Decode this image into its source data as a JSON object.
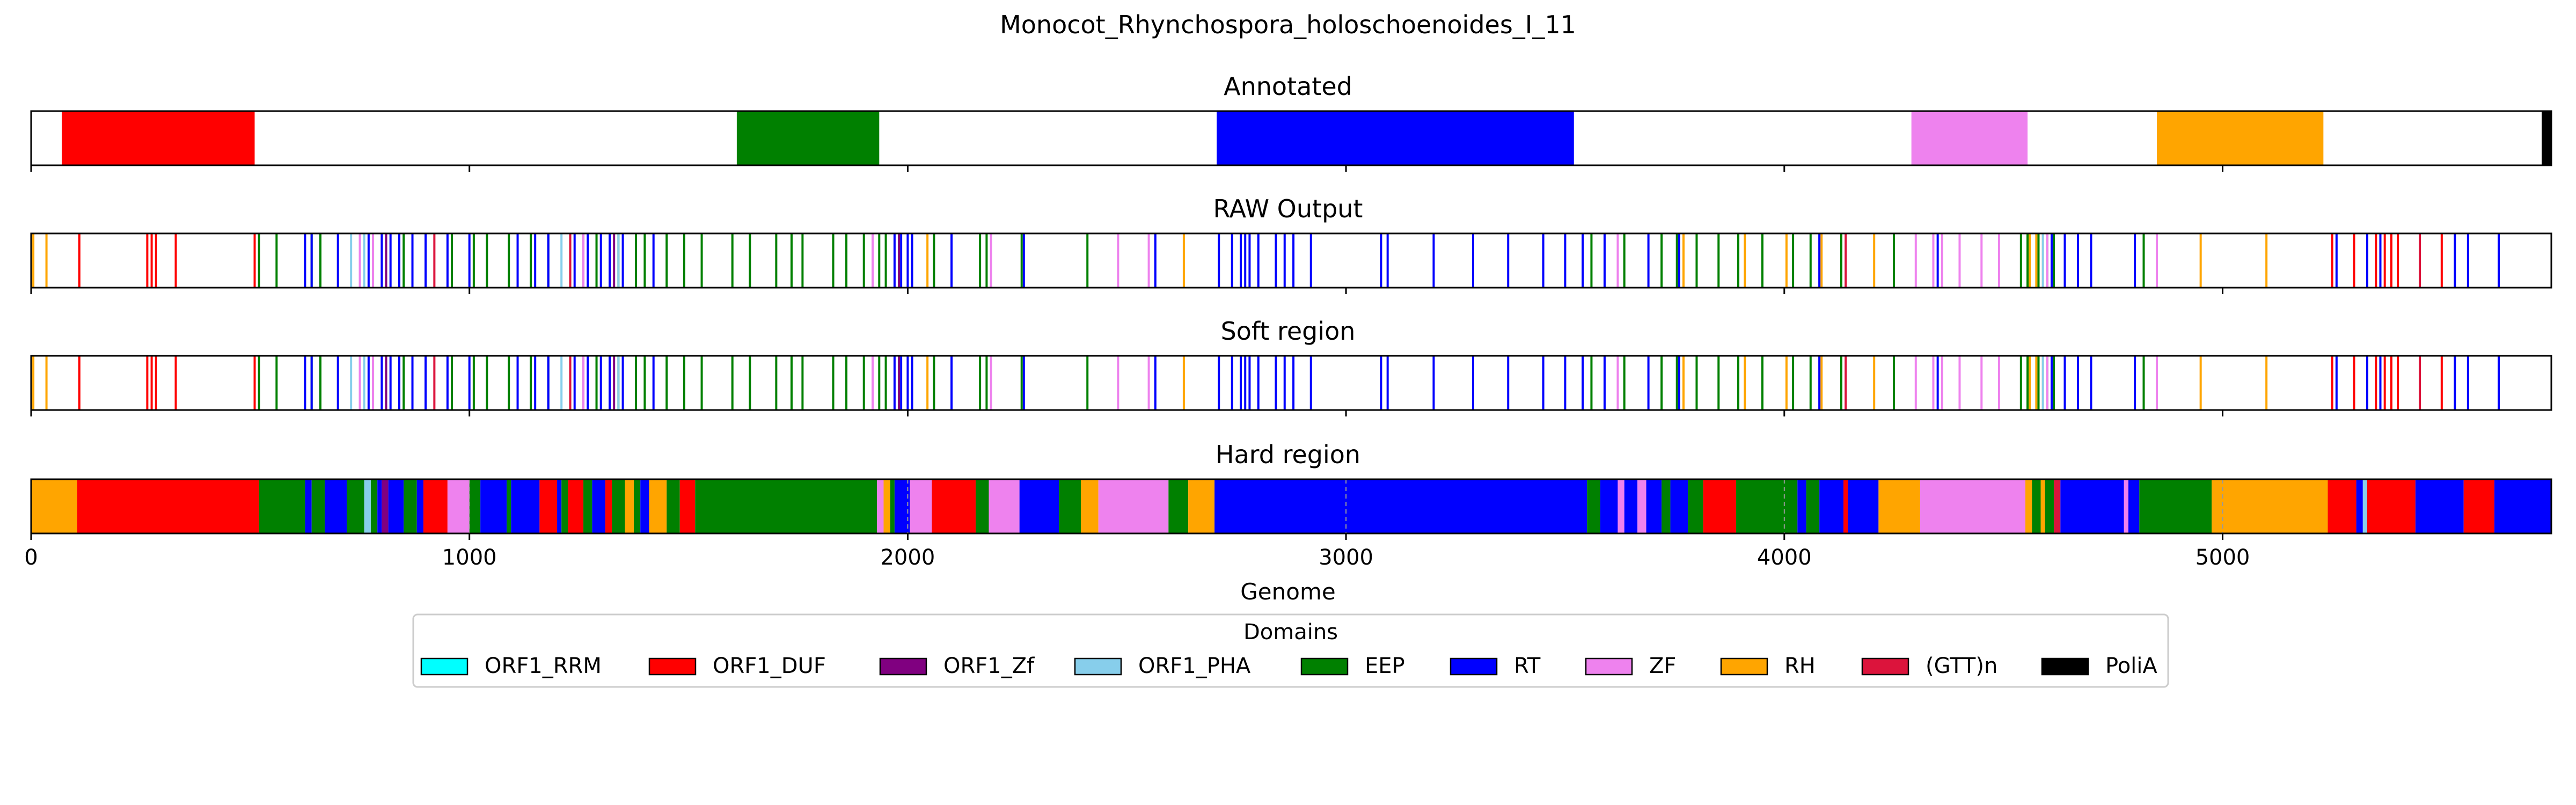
{
  "figure_title": "Monocot_Rhynchospora_holoschoenoides_I_11",
  "chart_data": {
    "type": "bar",
    "title": "Monocot_Rhynchospora_holoschoenoides_I_11",
    "xlabel": "Genome",
    "xlim": [
      0,
      5750
    ],
    "xticks": [
      "0",
      "1000",
      "2000",
      "3000",
      "4000",
      "5000"
    ],
    "xtick_values": [
      0,
      1000,
      2000,
      3000,
      4000,
      5000
    ],
    "grid": "vertical dashed lines at x-ticks in Hard region",
    "legend": {
      "title": "Domains",
      "placement": "bottom-center",
      "entries": [
        {
          "name": "ORF1_RRM",
          "color": "#00ffff"
        },
        {
          "name": "ORF1_DUF",
          "color": "#ff0000"
        },
        {
          "name": "ORF1_Zf",
          "color": "#800080"
        },
        {
          "name": "ORF1_PHA",
          "color": "#87ceeb"
        },
        {
          "name": "EEP",
          "color": "#008000"
        },
        {
          "name": "RT",
          "color": "#0000ff"
        },
        {
          "name": "ZF",
          "color": "#ee82ee"
        },
        {
          "name": "RH",
          "color": "#ffa500"
        },
        {
          "name": "(GTT)n",
          "color": "#dc143c"
        },
        {
          "name": "PoliA",
          "color": "#000000"
        }
      ]
    },
    "panels": [
      {
        "name": "Annotated",
        "segments": [
          {
            "domain": "ORF1_DUF",
            "start": 70,
            "end": 510
          },
          {
            "domain": "EEP",
            "start": 1610,
            "end": 1935
          },
          {
            "domain": "RT",
            "start": 2705,
            "end": 3520
          },
          {
            "domain": "ZF",
            "start": 4290,
            "end": 4555
          },
          {
            "domain": "RH",
            "start": 4850,
            "end": 5230
          },
          {
            "domain": "PoliA",
            "start": 5728,
            "end": 5750
          }
        ]
      },
      {
        "name": "RAW Output",
        "lines": [
          {
            "domain": "RH",
            "positions": [
              5,
              35,
              2045,
              2630,
              3770,
              3910,
              4005,
              4085,
              4205,
              4560,
              4575,
              4590,
              4950,
              5100
            ]
          },
          {
            "domain": "ORF1_DUF",
            "positions": [
              110,
              265,
              275,
              285,
              330,
              510,
              5250,
              5300,
              5350,
              5370,
              5385,
              5400,
              5450,
              5500
            ]
          },
          {
            "domain": "EEP",
            "positions": [
              520,
              560,
              640,
              660,
              780,
              850,
              960,
              1010,
              1040,
              1090,
              1140,
              1180,
              1230,
              1260,
              1290,
              1340,
              1380,
              1400,
              1450,
              1490,
              1530,
              1600,
              1640,
              1700,
              1735,
              1760,
              1830,
              1860,
              1900,
              1935,
              1950,
              2060,
              2165,
              2180,
              2260,
              2410,
              3560,
              3635,
              3720,
              3755,
              3800,
              3850,
              3895,
              3950,
              4020,
              4060,
              4130,
              4250,
              4540,
              4555,
              4580,
              4600,
              4615,
              4820
            ]
          },
          {
            "domain": "RT",
            "positions": [
              625,
              640,
              700,
              770,
              800,
              820,
              840,
              870,
              900,
              950,
              1000,
              1110,
              1150,
              1180,
              1240,
              1270,
              1300,
              1320,
              1350,
              1420,
              1970,
              1985,
              2000,
              2010,
              2100,
              2265,
              2565,
              2710,
              2740,
              2760,
              2770,
              2780,
              2800,
              2840,
              2860,
              2880,
              2920,
              3080,
              3095,
              3200,
              3290,
              3370,
              3450,
              3500,
              3540,
              3590,
              3690,
              3760,
              4080,
              4350,
              4610,
              4640,
              4670,
              4700,
              4800,
              5260,
              5330,
              5360,
              5530,
              5560,
              5630
            ]
          },
          {
            "domain": "ORF1_PHA",
            "positions": [
              730,
              760,
              1210,
              1340,
              4590
            ]
          },
          {
            "domain": "ZF",
            "positions": [
              750,
              780,
              1260,
              1920,
              2190,
              2480,
              2550,
              3620,
              4300,
              4340,
              4360,
              4400,
              4450,
              4490,
              4600,
              4850
            ]
          },
          {
            "domain": "ORF1_Zf",
            "positions": [
              810,
              1330,
              1980
            ]
          },
          {
            "domain": "(GTT)n",
            "positions": [
              920,
              1230,
              4140,
              5450
            ]
          }
        ]
      },
      {
        "name": "Soft region",
        "lines": [
          {
            "domain": "RH",
            "positions": [
              5,
              35,
              2045,
              2630,
              3770,
              3910,
              4005,
              4085,
              4205,
              4560,
              4575,
              4590,
              4950,
              5100
            ]
          },
          {
            "domain": "ORF1_DUF",
            "positions": [
              110,
              265,
              275,
              285,
              330,
              510,
              5250,
              5300,
              5350,
              5370,
              5385,
              5400,
              5450,
              5500
            ]
          },
          {
            "domain": "EEP",
            "positions": [
              520,
              560,
              640,
              660,
              780,
              850,
              960,
              1010,
              1040,
              1090,
              1140,
              1180,
              1230,
              1260,
              1290,
              1340,
              1380,
              1400,
              1450,
              1490,
              1530,
              1600,
              1640,
              1700,
              1735,
              1760,
              1830,
              1860,
              1900,
              1935,
              1950,
              2060,
              2165,
              2180,
              2260,
              2410,
              3560,
              3635,
              3720,
              3755,
              3800,
              3850,
              3895,
              3950,
              4020,
              4060,
              4130,
              4250,
              4540,
              4555,
              4580,
              4600,
              4615,
              4820
            ]
          },
          {
            "domain": "RT",
            "positions": [
              625,
              640,
              700,
              770,
              800,
              820,
              840,
              870,
              900,
              950,
              1000,
              1110,
              1150,
              1180,
              1240,
              1270,
              1300,
              1320,
              1350,
              1420,
              1970,
              1985,
              2000,
              2010,
              2100,
              2265,
              2565,
              2710,
              2740,
              2760,
              2770,
              2780,
              2800,
              2840,
              2860,
              2880,
              2920,
              3080,
              3095,
              3200,
              3290,
              3370,
              3450,
              3500,
              3540,
              3590,
              3690,
              3760,
              4080,
              4350,
              4610,
              4640,
              4670,
              4700,
              4800,
              5260,
              5330,
              5360,
              5530,
              5560,
              5630
            ]
          },
          {
            "domain": "ORF1_PHA",
            "positions": [
              730,
              760,
              1210,
              1340,
              4590
            ]
          },
          {
            "domain": "ZF",
            "positions": [
              750,
              780,
              1260,
              1920,
              2190,
              2480,
              2550,
              3620,
              4300,
              4340,
              4360,
              4400,
              4450,
              4490,
              4600,
              4850
            ]
          },
          {
            "domain": "ORF1_Zf",
            "positions": [
              810,
              1330,
              1980
            ]
          },
          {
            "domain": "(GTT)n",
            "positions": [
              920,
              1230,
              4140,
              5450
            ]
          }
        ]
      },
      {
        "name": "Hard region",
        "segments": [
          {
            "domain": "RH",
            "start": 0,
            "end": 105
          },
          {
            "domain": "ORF1_DUF",
            "start": 105,
            "end": 520
          },
          {
            "domain": "EEP",
            "start": 520,
            "end": 625
          },
          {
            "domain": "RT",
            "start": 625,
            "end": 640
          },
          {
            "domain": "EEP",
            "start": 640,
            "end": 670
          },
          {
            "domain": "RT",
            "start": 670,
            "end": 720
          },
          {
            "domain": "EEP",
            "start": 720,
            "end": 760
          },
          {
            "domain": "ORF1_PHA",
            "start": 760,
            "end": 775
          },
          {
            "domain": "EEP",
            "start": 775,
            "end": 790
          },
          {
            "domain": "RT",
            "start": 790,
            "end": 800
          },
          {
            "domain": "ORF1_Zf",
            "start": 800,
            "end": 815
          },
          {
            "domain": "RT",
            "start": 815,
            "end": 850
          },
          {
            "domain": "EEP",
            "start": 850,
            "end": 880
          },
          {
            "domain": "RT",
            "start": 880,
            "end": 895
          },
          {
            "domain": "ORF1_DUF",
            "start": 895,
            "end": 950
          },
          {
            "domain": "ZF",
            "start": 950,
            "end": 1000
          },
          {
            "domain": "EEP",
            "start": 1000,
            "end": 1025
          },
          {
            "domain": "RT",
            "start": 1025,
            "end": 1085
          },
          {
            "domain": "EEP",
            "start": 1085,
            "end": 1095
          },
          {
            "domain": "RT",
            "start": 1095,
            "end": 1160
          },
          {
            "domain": "ORF1_DUF",
            "start": 1160,
            "end": 1200
          },
          {
            "domain": "RT",
            "start": 1200,
            "end": 1210
          },
          {
            "domain": "EEP",
            "start": 1210,
            "end": 1225
          },
          {
            "domain": "ORF1_DUF",
            "start": 1225,
            "end": 1260
          },
          {
            "domain": "EEP",
            "start": 1260,
            "end": 1280
          },
          {
            "domain": "RT",
            "start": 1280,
            "end": 1310
          },
          {
            "domain": "ORF1_DUF",
            "start": 1310,
            "end": 1325
          },
          {
            "domain": "EEP",
            "start": 1325,
            "end": 1355
          },
          {
            "domain": "RH",
            "start": 1355,
            "end": 1375
          },
          {
            "domain": "EEP",
            "start": 1375,
            "end": 1390
          },
          {
            "domain": "RT",
            "start": 1390,
            "end": 1410
          },
          {
            "domain": "RH",
            "start": 1410,
            "end": 1450
          },
          {
            "domain": "EEP",
            "start": 1450,
            "end": 1480
          },
          {
            "domain": "ORF1_DUF",
            "start": 1480,
            "end": 1515
          },
          {
            "domain": "EEP",
            "start": 1515,
            "end": 1930
          },
          {
            "domain": "ZF",
            "start": 1930,
            "end": 1945
          },
          {
            "domain": "RH",
            "start": 1945,
            "end": 1960
          },
          {
            "domain": "EEP",
            "start": 1960,
            "end": 1970
          },
          {
            "domain": "RT",
            "start": 1970,
            "end": 2005
          },
          {
            "domain": "ZF",
            "start": 2005,
            "end": 2055
          },
          {
            "domain": "ORF1_DUF",
            "start": 2055,
            "end": 2155
          },
          {
            "domain": "EEP",
            "start": 2155,
            "end": 2185
          },
          {
            "domain": "ZF",
            "start": 2185,
            "end": 2255
          },
          {
            "domain": "RT",
            "start": 2255,
            "end": 2345
          },
          {
            "domain": "EEP",
            "start": 2345,
            "end": 2395
          },
          {
            "domain": "RH",
            "start": 2395,
            "end": 2435
          },
          {
            "domain": "ZF",
            "start": 2435,
            "end": 2595
          },
          {
            "domain": "EEP",
            "start": 2595,
            "end": 2640
          },
          {
            "domain": "RH",
            "start": 2640,
            "end": 2700
          },
          {
            "domain": "RT",
            "start": 2700,
            "end": 3550
          },
          {
            "domain": "EEP",
            "start": 3550,
            "end": 3580
          },
          {
            "domain": "RT",
            "start": 3580,
            "end": 3620
          },
          {
            "domain": "ZF",
            "start": 3620,
            "end": 3635
          },
          {
            "domain": "RT",
            "start": 3635,
            "end": 3665
          },
          {
            "domain": "ZF",
            "start": 3665,
            "end": 3685
          },
          {
            "domain": "RT",
            "start": 3685,
            "end": 3720
          },
          {
            "domain": "EEP",
            "start": 3720,
            "end": 3740
          },
          {
            "domain": "RT",
            "start": 3740,
            "end": 3780
          },
          {
            "domain": "EEP",
            "start": 3780,
            "end": 3815
          },
          {
            "domain": "ORF1_DUF",
            "start": 3815,
            "end": 3890
          },
          {
            "domain": "EEP",
            "start": 3890,
            "end": 4030
          },
          {
            "domain": "RT",
            "start": 4030,
            "end": 4050
          },
          {
            "domain": "EEP",
            "start": 4050,
            "end": 4080
          },
          {
            "domain": "RT",
            "start": 4080,
            "end": 4135
          },
          {
            "domain": "ORF1_DUF",
            "start": 4135,
            "end": 4145
          },
          {
            "domain": "RT",
            "start": 4145,
            "end": 4215
          },
          {
            "domain": "RH",
            "start": 4215,
            "end": 4310
          },
          {
            "domain": "ZF",
            "start": 4310,
            "end": 4550
          },
          {
            "domain": "RH",
            "start": 4550,
            "end": 4565
          },
          {
            "domain": "EEP",
            "start": 4565,
            "end": 4585
          },
          {
            "domain": "RH",
            "start": 4585,
            "end": 4595
          },
          {
            "domain": "EEP",
            "start": 4595,
            "end": 4615
          },
          {
            "domain": "(GTT)n",
            "start": 4615,
            "end": 4630
          },
          {
            "domain": "RT",
            "start": 4630,
            "end": 4775
          },
          {
            "domain": "ZF",
            "start": 4775,
            "end": 4785
          },
          {
            "domain": "RT",
            "start": 4785,
            "end": 4810
          },
          {
            "domain": "EEP",
            "start": 4810,
            "end": 4975
          },
          {
            "domain": "RH",
            "start": 4975,
            "end": 5240
          },
          {
            "domain": "ORF1_DUF",
            "start": 5240,
            "end": 5305
          },
          {
            "domain": "RT",
            "start": 5305,
            "end": 5320
          },
          {
            "domain": "ORF1_PHA",
            "start": 5320,
            "end": 5330
          },
          {
            "domain": "ORF1_DUF",
            "start": 5330,
            "end": 5440
          },
          {
            "domain": "RT",
            "start": 5440,
            "end": 5550
          },
          {
            "domain": "ORF1_DUF",
            "start": 5550,
            "end": 5620
          },
          {
            "domain": "RT",
            "start": 5620,
            "end": 5750
          }
        ]
      }
    ]
  }
}
